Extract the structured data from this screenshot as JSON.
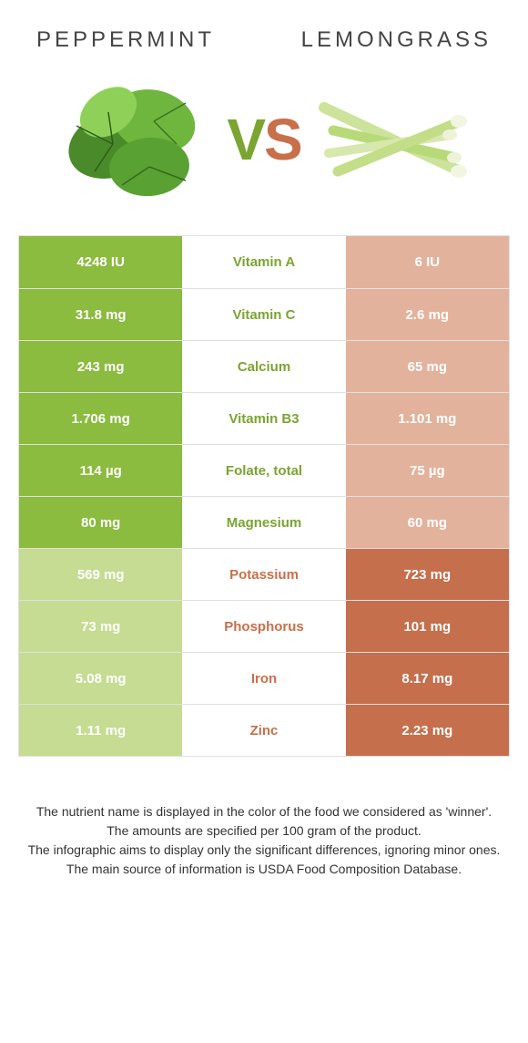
{
  "colors": {
    "left_win": "#8bbb3f",
    "left_lose": "#c5dc92",
    "right_win": "#c56f4d",
    "right_lose": "#e3b29c",
    "mid_left_text": "#7aa531",
    "mid_right_text": "#c96f4a",
    "border": "#e0e0e0",
    "bg": "#ffffff"
  },
  "header": {
    "left": "Peppermint",
    "right": "Lemongrass"
  },
  "vs": {
    "v": "V",
    "s": "S"
  },
  "rows": [
    {
      "nutrient": "Vitamin A",
      "left": "4248 IU",
      "right": "6 IU",
      "winner": "left"
    },
    {
      "nutrient": "Vitamin C",
      "left": "31.8 mg",
      "right": "2.6 mg",
      "winner": "left"
    },
    {
      "nutrient": "Calcium",
      "left": "243 mg",
      "right": "65 mg",
      "winner": "left"
    },
    {
      "nutrient": "Vitamin B3",
      "left": "1.706 mg",
      "right": "1.101 mg",
      "winner": "left"
    },
    {
      "nutrient": "Folate, total",
      "left": "114 µg",
      "right": "75 µg",
      "winner": "left"
    },
    {
      "nutrient": "Magnesium",
      "left": "80 mg",
      "right": "60 mg",
      "winner": "left"
    },
    {
      "nutrient": "Potassium",
      "left": "569 mg",
      "right": "723 mg",
      "winner": "right"
    },
    {
      "nutrient": "Phosphorus",
      "left": "73 mg",
      "right": "101 mg",
      "winner": "right"
    },
    {
      "nutrient": "Iron",
      "left": "5.08 mg",
      "right": "8.17 mg",
      "winner": "right"
    },
    {
      "nutrient": "Zinc",
      "left": "1.11 mg",
      "right": "2.23 mg",
      "winner": "right"
    }
  ],
  "footnote": {
    "l1": "The nutrient name is displayed in the color of the food we considered as 'winner'.",
    "l2": "The amounts are specified per 100 gram of the product.",
    "l3": "The infographic aims to display only the significant differences, ignoring minor ones.",
    "l4": "The main source of information is USDA Food Composition Database."
  }
}
